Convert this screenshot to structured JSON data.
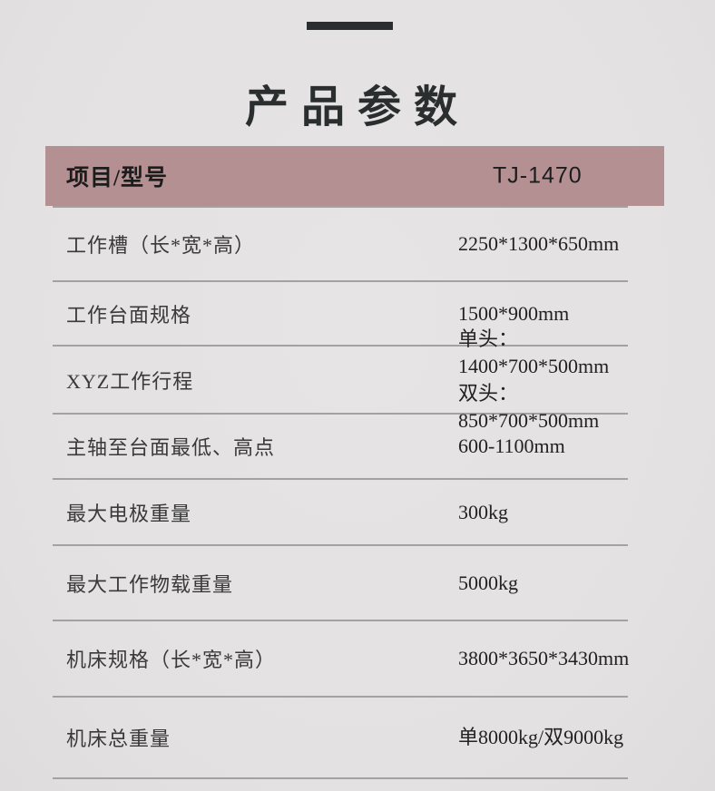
{
  "theme": {
    "page-bg": "#e3e1e1",
    "accent-dark": "#2a2e2e",
    "header-bg": "#b59092",
    "header-text": "#1c1c1c",
    "row-text": "#3a3a3a",
    "value-text": "#222222",
    "separator": "#a2a2a2"
  },
  "page": {
    "title": "产品参数"
  },
  "table": {
    "header": {
      "label": "项目/型号",
      "model": "TJ-1470"
    },
    "rows": [
      {
        "label": "工作槽（长*宽*高）",
        "value": "2250*1300*650mm"
      },
      {
        "label": "工作台面规格",
        "value": "1500*900mm"
      },
      {
        "label": "XYZ工作行程",
        "value": "单头：1400*700*500mm\n双头：850*700*500mm"
      },
      {
        "label": "主轴至台面最低、高点",
        "value": "600-1100mm"
      },
      {
        "label": "最大电极重量",
        "value": "300kg"
      },
      {
        "label": "最大工作物载重量",
        "value": "5000kg"
      },
      {
        "label": "机床规格（长*宽*高）",
        "value": "3800*3650*3430mm"
      },
      {
        "label": "机床总重量",
        "value": "单8000kg/双9000kg"
      }
    ]
  }
}
